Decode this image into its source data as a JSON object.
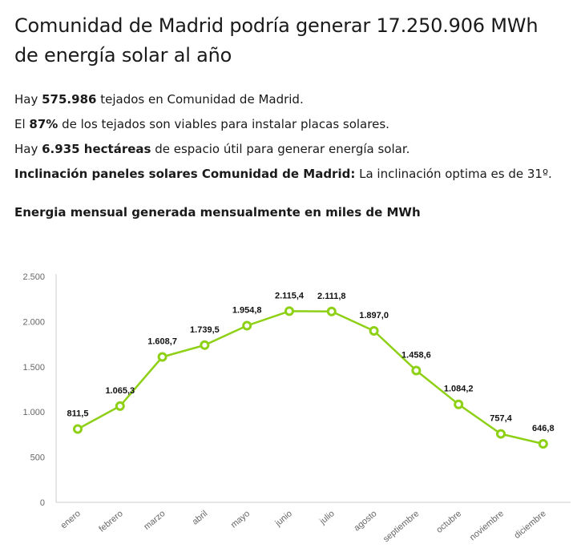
{
  "heading": "Comunidad de Madrid podría generar 17.250.906 MWh de energía solar al año",
  "facts": [
    {
      "pre": "Hay ",
      "bold": "575.986",
      "post": " tejados en Comunidad de Madrid."
    },
    {
      "pre": "El ",
      "bold": "87%",
      "post": " de los tejados son viables para instalar placas solares."
    },
    {
      "pre": "Hay ",
      "bold": "6.935 hectáreas",
      "post": " de espacio útil para generar energía solar."
    },
    {
      "pre": "",
      "bold": "Inclinación paneles solares Comunidad de Madrid:",
      "post": " La inclinación optima es de 31º."
    }
  ],
  "chart_title": "Energia mensual generada mensualmente en miles de MWh",
  "chart_data": {
    "type": "line",
    "title": "Energia mensual generada mensualmente en miles de MWh",
    "xlabel": "",
    "ylabel": "",
    "categories": [
      "enero",
      "febrero",
      "marzo",
      "abril",
      "mayo",
      "junio",
      "julio",
      "agosto",
      "septiembre",
      "octubre",
      "noviembre",
      "diciembre"
    ],
    "values": [
      811.5,
      1065.3,
      1608.7,
      1739.5,
      1954.8,
      2115.4,
      2111.8,
      1897.0,
      1458.6,
      1084.2,
      757.4,
      646.8
    ],
    "value_labels": [
      "811,5",
      "1.065,3",
      "1.608,7",
      "1.739,5",
      "1.954,8",
      "2.115,4",
      "2.111,8",
      "1.897,0",
      "1.458,6",
      "1.084,2",
      "757,4",
      "646,8"
    ],
    "ylim": [
      0,
      2500
    ],
    "yticks": [
      0,
      500,
      1000,
      1500,
      2000,
      2500
    ],
    "ytick_labels": [
      "0",
      "500",
      "1.000",
      "1.500",
      "2.000",
      "2.500"
    ],
    "grid": false,
    "legend": "none",
    "line_color": "#8ed016",
    "axis_color": "#cccccc"
  }
}
